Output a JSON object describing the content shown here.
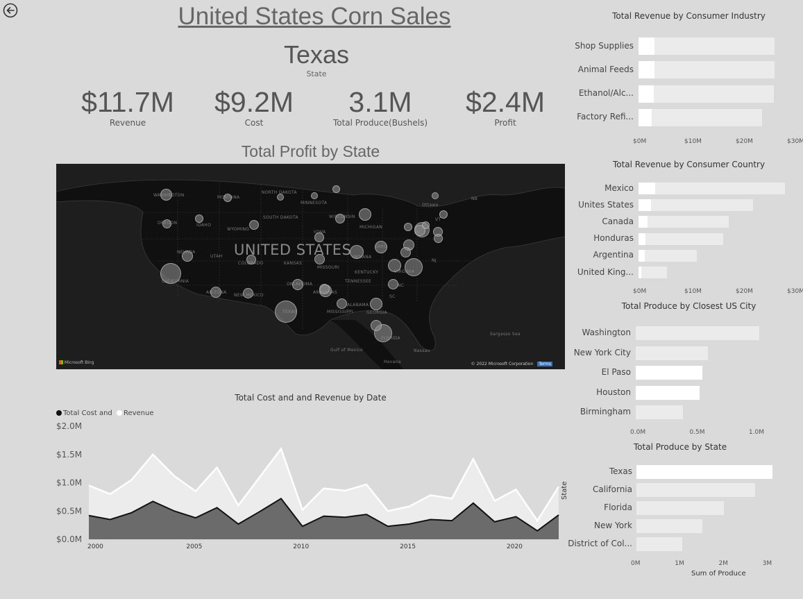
{
  "header": {
    "title": "United States Corn Sales",
    "state_value": "Texas",
    "state_label": "State"
  },
  "kpis": [
    {
      "value": "$11.7M",
      "label": "Revenue"
    },
    {
      "value": "$9.2M",
      "label": "Cost"
    },
    {
      "value": "3.1M",
      "label": "Total Produce(Bushels)"
    },
    {
      "value": "$2.4M",
      "label": "Profit"
    }
  ],
  "map": {
    "title": "Total Profit by State",
    "big_label": "UNITED STATES",
    "bing": "Microsoft Bing",
    "copyright": "© 2022 Microsoft Corporation",
    "terms": "Terms",
    "labels": [
      "WASHINGTON",
      "MONTANA",
      "NORTH DAKOTA",
      "MINNESOTA",
      "OREGON",
      "IDAHO",
      "SOUTH DAKOTA",
      "WISCONSIN",
      "WYOMING",
      "IOWA",
      "MICHIGAN",
      "NEVADA",
      "UTAH",
      "COLORADO",
      "KANSAS",
      "MISSOURI",
      "INDIANA",
      "OHIO",
      "CALIFORNIA",
      "ARIZONA",
      "NEW MEXICO",
      "OKLAHOMA",
      "ARKANSAS",
      "TENNESSEE",
      "KENTUCKY",
      "VIRGINIA",
      "NC",
      "SC",
      "ALABAMA",
      "GEORGIA",
      "MISSISSIPPI",
      "TEXAS",
      "FLORIDA",
      "Ottawa",
      "NB",
      "PA",
      "NY",
      "VT",
      "NJ",
      "Gulf of Mexico",
      "Havana",
      "Nassau",
      "Sargasso Sea"
    ]
  },
  "area_chart": {
    "title": "Total Cost and and Revenue by Date",
    "legend": [
      {
        "name": "Total Cost and",
        "color": "#111111"
      },
      {
        "name": "Revenue",
        "color": "#ffffff"
      }
    ],
    "y_side_label": "State"
  },
  "bar_industry": {
    "title": "Total Revenue by Consumer Industry",
    "ticks": [
      "$0M",
      "$10M",
      "$20M",
      "$30M"
    ]
  },
  "bar_country": {
    "title": "Total Revenue by Consumer Country",
    "ticks": [
      "$0M",
      "$10M",
      "$20M",
      "$30M"
    ]
  },
  "bar_city": {
    "title": "Total Produce by Closest US City",
    "ticks": [
      "0.0M",
      "0.5M",
      "1.0M"
    ]
  },
  "bar_state": {
    "title": "Total Produce by State",
    "ticks": [
      "0M",
      "1M",
      "2M",
      "3M"
    ],
    "xlabel": "Sum of Produce"
  },
  "colors": {
    "background": "#dadada",
    "bar_track": "#ebebeb",
    "bar_fill": "#ffffff",
    "cost_area": "#6b6b6b",
    "revenue_area": "#ececec"
  },
  "chart_data": [
    {
      "type": "area",
      "title": "Total Cost and and Revenue by Date",
      "x": [
        2000,
        2001,
        2002,
        2003,
        2004,
        2005,
        2006,
        2007,
        2008,
        2009,
        2010,
        2011,
        2012,
        2013,
        2014,
        2015,
        2016,
        2017,
        2018,
        2019,
        2020,
        2021,
        2022
      ],
      "x_ticks": [
        "2000",
        "2005",
        "2010",
        "2015",
        "2020"
      ],
      "y_ticks": [
        "$0.0M",
        "$0.5M",
        "$1.0M",
        "$1.5M",
        "$2.0M"
      ],
      "ylim": [
        0,
        2.0
      ],
      "series": [
        {
          "name": "Revenue",
          "values": [
            0.95,
            0.8,
            1.05,
            1.5,
            1.12,
            0.85,
            1.27,
            0.6,
            1.1,
            1.6,
            0.52,
            0.9,
            0.86,
            0.97,
            0.5,
            0.58,
            0.78,
            0.72,
            1.42,
            0.68,
            0.88,
            0.33,
            0.93
          ]
        },
        {
          "name": "Total Cost and",
          "values": [
            0.42,
            0.35,
            0.47,
            0.67,
            0.5,
            0.38,
            0.56,
            0.27,
            0.49,
            0.72,
            0.23,
            0.41,
            0.39,
            0.44,
            0.23,
            0.27,
            0.35,
            0.33,
            0.64,
            0.31,
            0.4,
            0.15,
            0.43
          ]
        }
      ]
    },
    {
      "type": "bar",
      "title": "Total Revenue by Consumer Industry",
      "categories": [
        "Shop Supplies",
        "Animal Feeds",
        "Ethanol/Alc...",
        "Factory Refi..."
      ],
      "values": [
        3.1,
        3.1,
        3.0,
        2.5
      ],
      "totals": [
        26.5,
        26.5,
        26.4,
        24.0
      ],
      "xlim": [
        0,
        30
      ]
    },
    {
      "type": "bar",
      "title": "Total Revenue by Consumer Country",
      "categories": [
        "Mexico",
        "Unites States",
        "Canada",
        "Honduras",
        "Argentina",
        "United King..."
      ],
      "values": [
        3.2,
        2.4,
        1.7,
        1.4,
        1.2,
        0.6
      ],
      "totals": [
        28.5,
        22.3,
        17.5,
        16.5,
        11.3,
        5.6
      ],
      "xlim": [
        0,
        30
      ]
    },
    {
      "type": "bar",
      "title": "Total Produce by Closest US City",
      "categories": [
        "Washington",
        "New York City",
        "El Paso",
        "Houston",
        "Birmingham"
      ],
      "values": [
        0.0,
        0.0,
        0.56,
        0.54,
        0.0
      ],
      "totals": [
        1.04,
        0.61,
        0.56,
        0.54,
        0.4
      ],
      "xlim": [
        0,
        1.1
      ]
    },
    {
      "type": "bar",
      "title": "Total Produce by State",
      "xlabel": "Sum of Produce",
      "categories": [
        "Texas",
        "California",
        "Florida",
        "New York",
        "District of Col..."
      ],
      "values": [
        3.1,
        0.0,
        0.0,
        0.0,
        0.0
      ],
      "totals": [
        3.1,
        2.7,
        2.0,
        1.5,
        1.05
      ],
      "xlim": [
        0,
        3.1
      ]
    }
  ]
}
